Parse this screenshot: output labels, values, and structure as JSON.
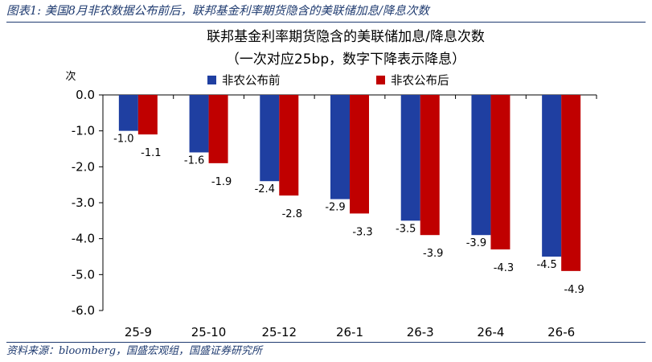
{
  "caption": "图表1:  美国8月非农数据公布前后，联邦基金利率期货隐含的美联储加息/降息次数",
  "source": "资料来源：bloomberg，国盛宏观组，国盛证券研究所",
  "colors": {
    "before": "#1f3fa1",
    "after": "#c00000",
    "frame": "#1f3b70"
  },
  "chart_data": {
    "type": "bar",
    "title": "联邦基金利率期货隐含的美联储加息/降息次数",
    "subtitle": "（一次对应25bp，数字下降表示降息）",
    "ylabel": "次",
    "xlabel": "",
    "ylim": [
      -6.0,
      0.0
    ],
    "yticks": [
      "0.0",
      "-1.0",
      "-2.0",
      "-3.0",
      "-4.0",
      "-5.0",
      "-6.0"
    ],
    "categories": [
      "25-9",
      "25-10",
      "25-12",
      "26-1",
      "26-3",
      "26-4",
      "26-6"
    ],
    "legend_position": "top-right",
    "series": [
      {
        "name": "非农公布前",
        "values": [
          -1.0,
          -1.6,
          -2.4,
          -2.9,
          -3.5,
          -3.9,
          -4.5
        ],
        "labels": [
          "-1.0",
          "-1.6",
          "-2.4",
          "-2.9",
          "-3.5",
          "-3.9",
          "-4.5"
        ]
      },
      {
        "name": "非农公布后",
        "values": [
          -1.1,
          -1.9,
          -2.8,
          -3.3,
          -3.9,
          -4.3,
          -4.9
        ],
        "labels": [
          "-1.1",
          "-1.9",
          "-2.8",
          "-3.3",
          "-3.9",
          "-4.3",
          "-4.9"
        ]
      }
    ]
  }
}
